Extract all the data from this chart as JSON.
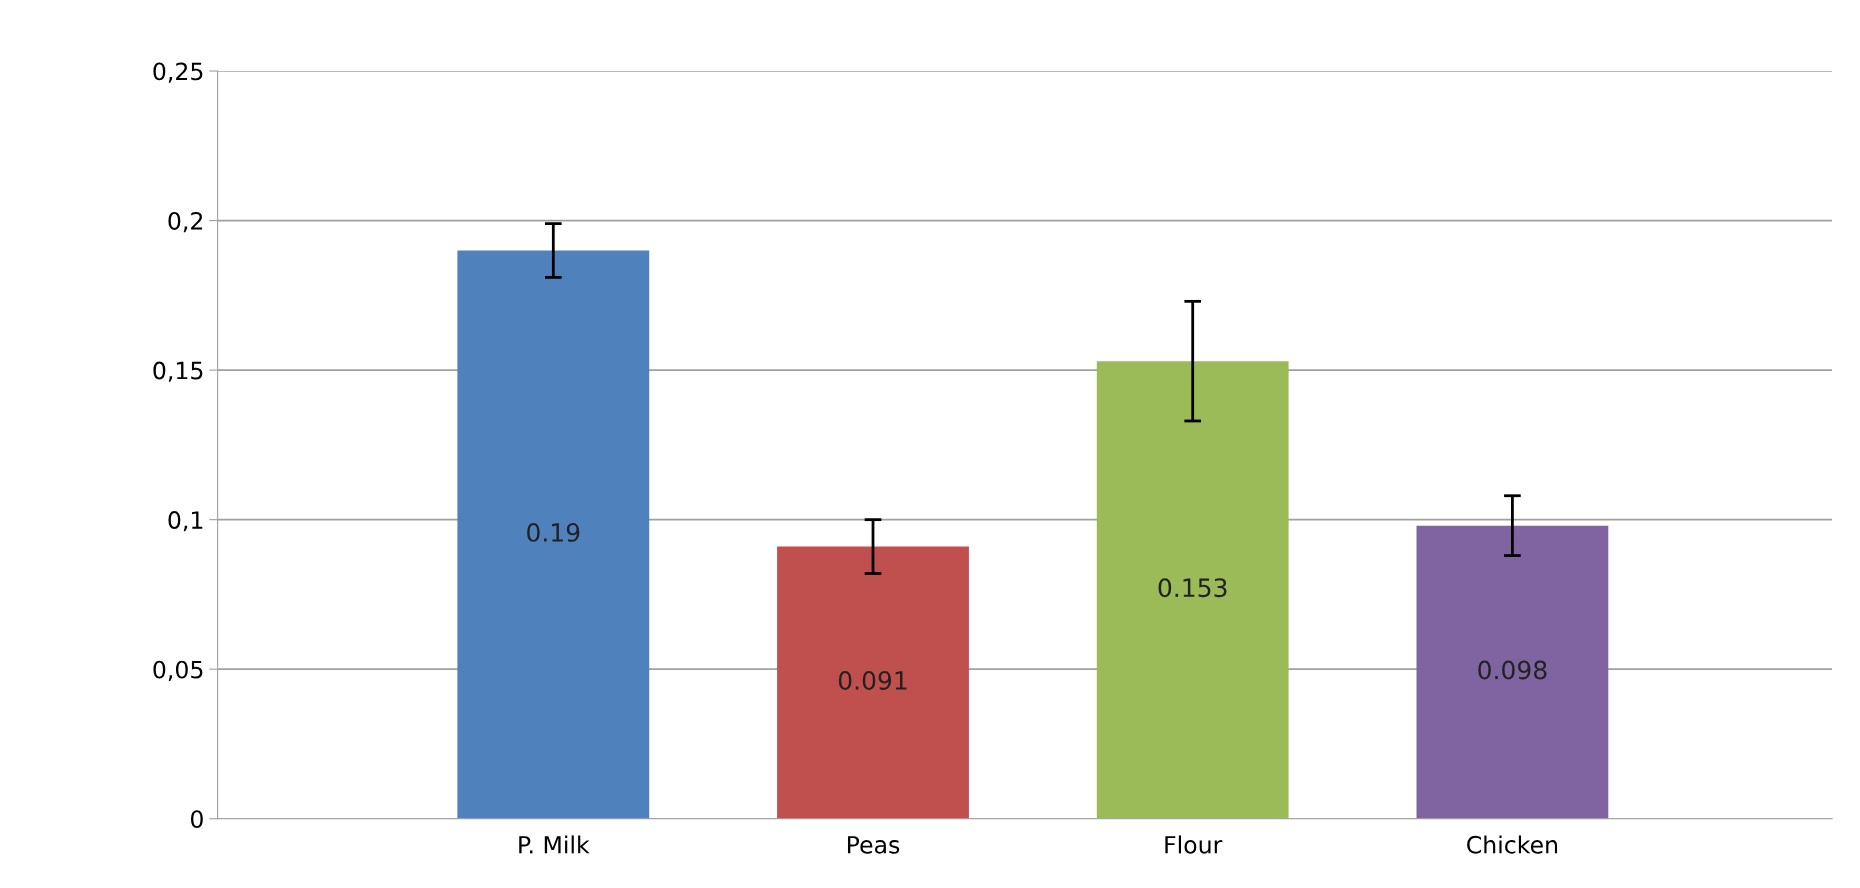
{
  "chart_data": {
    "type": "bar",
    "categories": [
      "P. Milk",
      "Peas",
      "Flour",
      "Chicken"
    ],
    "values": [
      0.19,
      0.091,
      0.153,
      0.098
    ],
    "colors": [
      "#4f81bd",
      "#c0504d",
      "#9bbb59",
      "#8064a2"
    ],
    "errors": [
      0.009,
      0.009,
      0.02,
      0.01
    ],
    "data_labels": true,
    "ylim": [
      0,
      0.25
    ],
    "yticks": [
      {
        "value": 0,
        "label": "0"
      },
      {
        "value": 0.05,
        "label": "0,05"
      },
      {
        "value": 0.1,
        "label": "0,1"
      },
      {
        "value": 0.15,
        "label": "0,15"
      },
      {
        "value": 0.2,
        "label": "0,2"
      },
      {
        "value": 0.25,
        "label": "0,25"
      }
    ],
    "grid": "y"
  }
}
